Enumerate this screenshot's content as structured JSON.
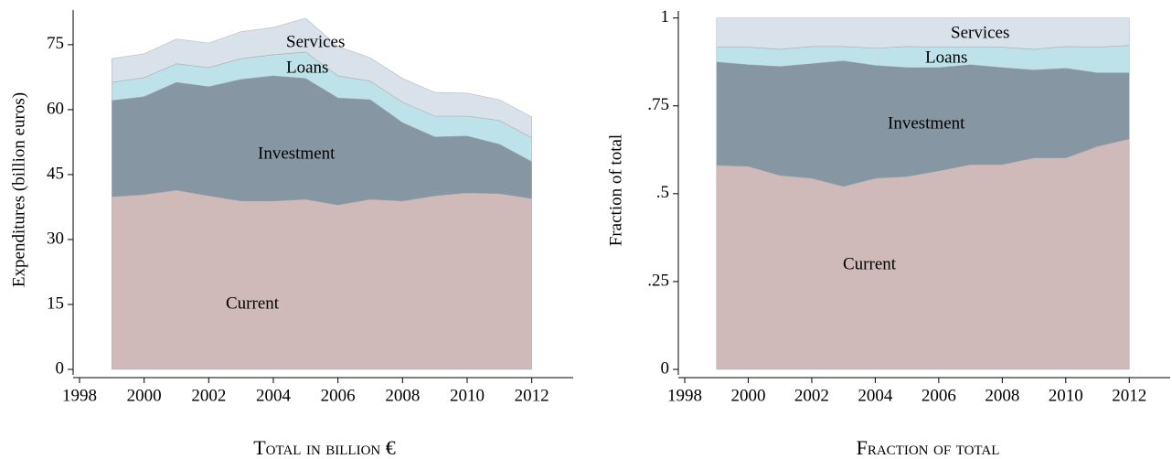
{
  "chart_data": [
    {
      "type": "area",
      "stacked": true,
      "y_label": "Expenditures (billion euros)",
      "caption": "Total in billion €",
      "x": [
        1999,
        2000,
        2001,
        2002,
        2003,
        2004,
        2005,
        2006,
        2007,
        2008,
        2009,
        2010,
        2011,
        2012
      ],
      "xlim": [
        1998,
        2013
      ],
      "xticks": [
        1998,
        2000,
        2002,
        2004,
        2006,
        2008,
        2010,
        2012
      ],
      "ylim": [
        0,
        83
      ],
      "yticks": [
        0,
        15,
        30,
        45,
        60,
        75
      ],
      "series": [
        {
          "name": "Current",
          "color": "#cfb9b9",
          "values": [
            39.9,
            40.4,
            41.4,
            40.1,
            38.9,
            38.9,
            39.3,
            38.0,
            39.3,
            38.9,
            40.1,
            40.8,
            40.6,
            39.5
          ]
        },
        {
          "name": "Investment",
          "color": "#8696a3",
          "values": [
            22.2,
            22.6,
            24.9,
            25.2,
            28.1,
            28.9,
            27.9,
            24.7,
            23.0,
            18.1,
            13.6,
            13.1,
            11.4,
            8.5
          ]
        },
        {
          "name": "Loans",
          "color": "#bde2ea",
          "values": [
            4.2,
            4.4,
            4.3,
            4.4,
            4.8,
            4.9,
            6.1,
            5.1,
            4.3,
            4.7,
            4.8,
            4.6,
            5.5,
            5.5
          ]
        },
        {
          "name": "Services",
          "color": "#d9e1ea",
          "values": [
            5.5,
            5.5,
            5.7,
            5.7,
            6.2,
            6.3,
            7.8,
            6.8,
            5.4,
            5.5,
            5.5,
            5.3,
            4.8,
            4.8
          ]
        }
      ]
    },
    {
      "type": "area",
      "stacked": true,
      "y_label": "Fraction of total",
      "caption": "Fraction of total",
      "x": [
        1999,
        2000,
        2001,
        2002,
        2003,
        2004,
        2005,
        2006,
        2007,
        2008,
        2009,
        2010,
        2011,
        2012
      ],
      "xlim": [
        1998,
        2013
      ],
      "xticks": [
        1998,
        2000,
        2002,
        2004,
        2006,
        2008,
        2010,
        2012
      ],
      "ylim": [
        0,
        1.02
      ],
      "yticks": [
        0,
        {
          "value": 0.25,
          "label": ".25"
        },
        {
          "value": 0.5,
          "label": ".5"
        },
        {
          "value": 0.75,
          "label": ".75"
        },
        1
      ],
      "series": [
        {
          "name": "Current",
          "color": "#cfb9b9",
          "values": [
            0.581,
            0.578,
            0.552,
            0.544,
            0.521,
            0.544,
            0.549,
            0.565,
            0.583,
            0.583,
            0.602,
            0.602,
            0.635,
            0.656
          ]
        },
        {
          "name": "Investment",
          "color": "#8696a3",
          "values": [
            0.294,
            0.289,
            0.31,
            0.326,
            0.357,
            0.321,
            0.31,
            0.294,
            0.284,
            0.276,
            0.25,
            0.255,
            0.209,
            0.188
          ]
        },
        {
          "name": "Loans",
          "color": "#bde2ea",
          "values": [
            0.042,
            0.05,
            0.049,
            0.049,
            0.041,
            0.049,
            0.06,
            0.058,
            0.05,
            0.058,
            0.059,
            0.062,
            0.073,
            0.078
          ]
        },
        {
          "name": "Services",
          "color": "#d9e1ea",
          "values": [
            0.083,
            0.083,
            0.089,
            0.081,
            0.081,
            0.086,
            0.081,
            0.083,
            0.083,
            0.083,
            0.089,
            0.081,
            0.083,
            0.078
          ]
        }
      ]
    }
  ]
}
